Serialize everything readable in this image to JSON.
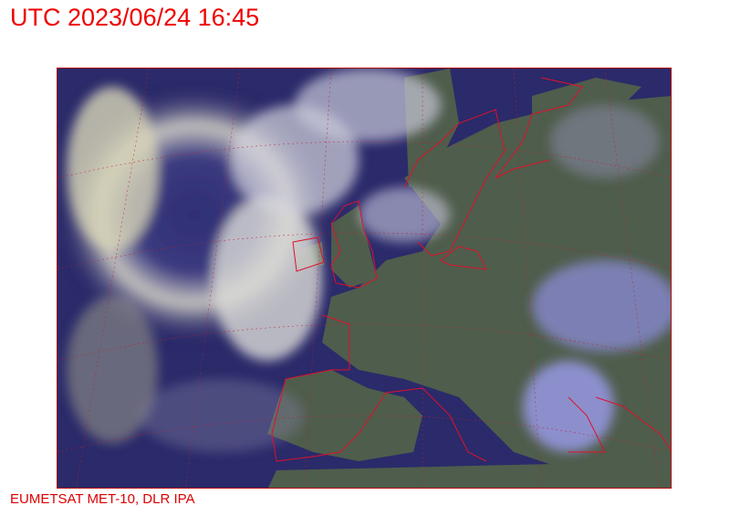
{
  "header": {
    "title": "UTC 2023/06/24 16:45"
  },
  "footer": {
    "credit": "EUMETSAT MET-10, DLR IPA"
  },
  "image": {
    "type": "satellite-composite",
    "region": "Europe and North Atlantic",
    "colors": {
      "ocean": "#2b2a6a",
      "land": "#4f5d4c",
      "cloud": "#e6e4d8",
      "coastline": "#e0102a",
      "grid": "#c02030"
    }
  }
}
